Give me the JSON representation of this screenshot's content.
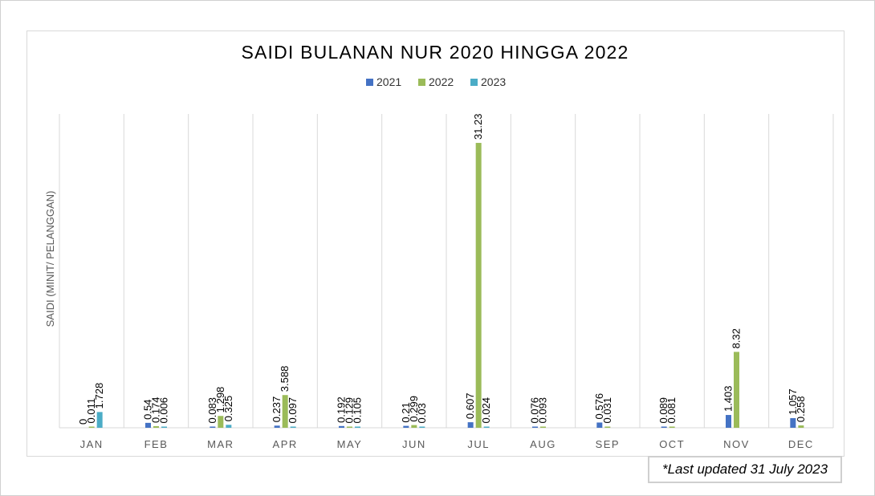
{
  "chart_data": {
    "type": "bar",
    "title": "SAIDI BULANAN NUR 2020 HINGGA 2022",
    "ylabel": "SAIDI (MINIT/ PELANGGAN)",
    "xlabel": "",
    "ylim": [
      0,
      34.4
    ],
    "grid": "vertical",
    "legend_position": "top",
    "categories": [
      "JAN",
      "FEB",
      "MAR",
      "APR",
      "MAY",
      "JUN",
      "JUL",
      "AUG",
      "SEP",
      "OCT",
      "NOV",
      "DEC"
    ],
    "series": [
      {
        "name": "2021",
        "color": "#4472c4",
        "values": [
          0,
          0.54,
          0.083,
          0.237,
          0.192,
          0.21,
          0.607,
          0.076,
          0.576,
          0.089,
          1.403,
          1.057
        ],
        "labels": [
          "0",
          "0.54",
          "0.083",
          "0.237",
          "0.192",
          "0.21",
          "0.607",
          "0.076",
          "0.576",
          "0.089",
          "1.403",
          "1.057"
        ]
      },
      {
        "name": "2022",
        "color": "#9bbb59",
        "values": [
          0.011,
          0.174,
          1.298,
          3.588,
          0.129,
          0.299,
          31.23,
          0.093,
          0.031,
          0.081,
          8.32,
          0.258
        ],
        "labels": [
          "0.011",
          "0.174",
          "1.298",
          "3.588",
          "0.129",
          "0.299",
          "31.23",
          "0.093",
          "0.031",
          "0.081",
          "8.32",
          "0.258"
        ]
      },
      {
        "name": "2023",
        "color": "#4bacc6",
        "values": [
          1.728,
          0.006,
          0.325,
          0.097,
          0.105,
          0.03,
          0.024,
          null,
          null,
          null,
          null,
          null
        ],
        "labels": [
          "1.728",
          "0.006",
          "0.325",
          "0.097",
          "0.105",
          "0.03",
          "0.024",
          null,
          null,
          null,
          null,
          null
        ]
      }
    ]
  },
  "note": "*Last updated 31 July 2023"
}
